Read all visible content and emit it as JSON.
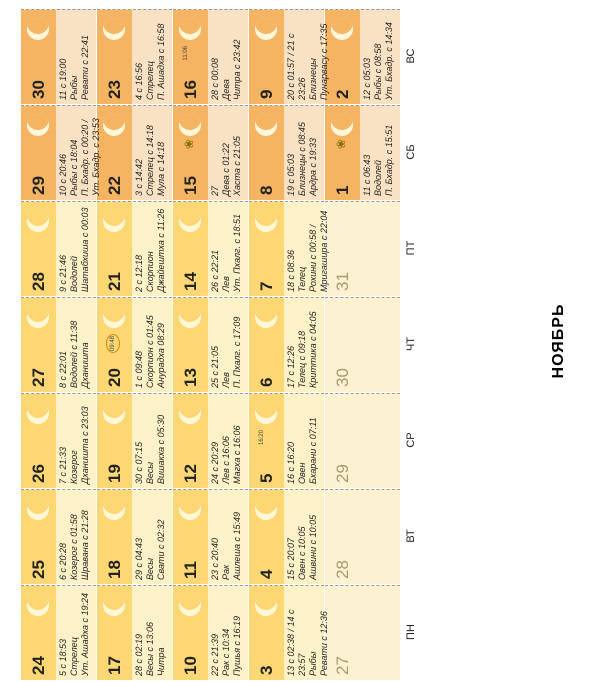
{
  "title": "НОЯБРЬ",
  "days_of_week": [
    "ПН",
    "ВТ",
    "СР",
    "ЧТ",
    "ПТ",
    "СБ",
    "ВС"
  ],
  "colors": {
    "weekday_header": "#fcd773",
    "weekend_header": "#f5b461",
    "weekday_body": "#fdf1c8",
    "weekend_body": "#f9e2c3"
  },
  "weeks": [
    [
      {
        "day": "27",
        "faded": true,
        "info": ""
      },
      {
        "day": "28",
        "faded": true,
        "info": ""
      },
      {
        "day": "29",
        "faded": true,
        "info": ""
      },
      {
        "day": "30",
        "faded": true,
        "info": ""
      },
      {
        "day": "31",
        "faded": true,
        "info": ""
      },
      {
        "day": "1",
        "moon": "crescent-left",
        "info": "11 с 06:43\nВодолей\nП. Бхадр. с 15:51",
        "badge": "lotus"
      },
      {
        "day": "2",
        "moon": "crescent-left",
        "info": "12 с 05:03\nРыбы с 08:58\nУт. Бхадр. с 14:34"
      }
    ],
    [
      {
        "day": "3",
        "moon": "crescent-left",
        "info": "13 с 02:38 / 14 с\n23:57\nРыбы\nРевати с 12:36"
      },
      {
        "day": "4",
        "moon": "crescent-left",
        "info": "15 с 20:07\nОвен с 10:05\nАшвини с 10:05"
      },
      {
        "day": "5",
        "moon": "crescent-left",
        "info": "16 с 16:20\nОвен\nБхарани с 07:11",
        "badge": "16:20"
      },
      {
        "day": "6",
        "moon": "crescent-left",
        "info": "17 с 12:26\nТелец с 09:18\nКриттика с 04:05"
      },
      {
        "day": "7",
        "moon": "crescent-left",
        "info": "18 с 08:36\nТелец\nРохини с 00:58 /\nМригашира с 22:04"
      },
      {
        "day": "8",
        "moon": "crescent-left",
        "info": "19 с 05:03\nБлизнецы с 08:45\nАрдра с 19:33"
      },
      {
        "day": "9",
        "moon": "crescent-left",
        "info": "20 с 01:57 / 21 с\n23:26\nБлизнецы\nПунарвасу с 17:35"
      }
    ],
    [
      {
        "day": "10",
        "moon": "crescent-left",
        "info": "22 с 21:39\nРак с 10:34\nПушья с 16:19"
      },
      {
        "day": "11",
        "moon": "crescent-left",
        "info": "23 с 20:40\nРак\nАшлеша с 15:49"
      },
      {
        "day": "12",
        "moon": "crescent-left",
        "info": "24 с 20:29\nЛев с 16:06\nМагха с 16:06"
      },
      {
        "day": "13",
        "moon": "crescent-left",
        "info": "25 с 21:05\nЛев\nП. Пхалг. с 17:09"
      },
      {
        "day": "14",
        "moon": "crescent-left",
        "info": "26 с 22:21\nЛев\nУт. Пхалг. с 18:51"
      },
      {
        "day": "15",
        "moon": "crescent-left",
        "info": "27\nДева с 01:22\nХаста с 21:05",
        "badge": "lotus"
      },
      {
        "day": "16",
        "moon": "crescent-left",
        "info": "28 с 00:08\nДева\nЧитра с 23:42",
        "badge": "11:06"
      }
    ],
    [
      {
        "day": "17",
        "moon": "crescent-left",
        "info": "28 с 02:19\nВесы с 13:06\nЧитра"
      },
      {
        "day": "18",
        "moon": "crescent-left",
        "info": "29 с 04:43\nВесы\nСвати с 02:32"
      },
      {
        "day": "19",
        "moon": "crescent-left",
        "info": "30 с 07:15\nВесы\nВишакха с 05:30"
      },
      {
        "day": "20",
        "moon": "crescent-left",
        "info": "1 с 09:48\nСкорпион с 01:45\nАнурадха 08:29",
        "badge": "09:48"
      },
      {
        "day": "21",
        "moon": "crescent-left",
        "info": "2 с 12:18\nСкорпион\nДжайештха с 11:26"
      },
      {
        "day": "22",
        "moon": "crescent-left",
        "info": "3 с 14:42\nСтрелец с 14:18\nМула с 14:18"
      },
      {
        "day": "23",
        "moon": "crescent-left",
        "info": "4 с 16:56\nСтрелец\nП. Ашадха с 16:58"
      }
    ],
    [
      {
        "day": "24",
        "moon": "crescent-left",
        "info": "5 с 18:53\nСтрелец\nУт. Ашадха с 19:24"
      },
      {
        "day": "25",
        "moon": "crescent-left",
        "info": "6 с 20:28\nКозерог с 01:58\nШравана с 21:28"
      },
      {
        "day": "26",
        "moon": "crescent-left",
        "info": "7 с 21:33\nКозерог\nДханишта с 23:03"
      },
      {
        "day": "27",
        "moon": "crescent-left",
        "info": "8 с 22:01\nВодолей с 11:38\nДханишта"
      },
      {
        "day": "28",
        "moon": "crescent-left",
        "info": "9 с 21:46\nВодолей\nШатабхиша с 00:03"
      },
      {
        "day": "29",
        "moon": "crescent-left",
        "info": "10 с 20:46\nРыбы с 18:04\nП. Бхадр. с 00:20 /\nУт. Бхадр. с 23:53"
      },
      {
        "day": "30",
        "moon": "crescent-left",
        "info": "11 с 19:00\nРыбы\nРевати с 22:41"
      }
    ]
  ]
}
